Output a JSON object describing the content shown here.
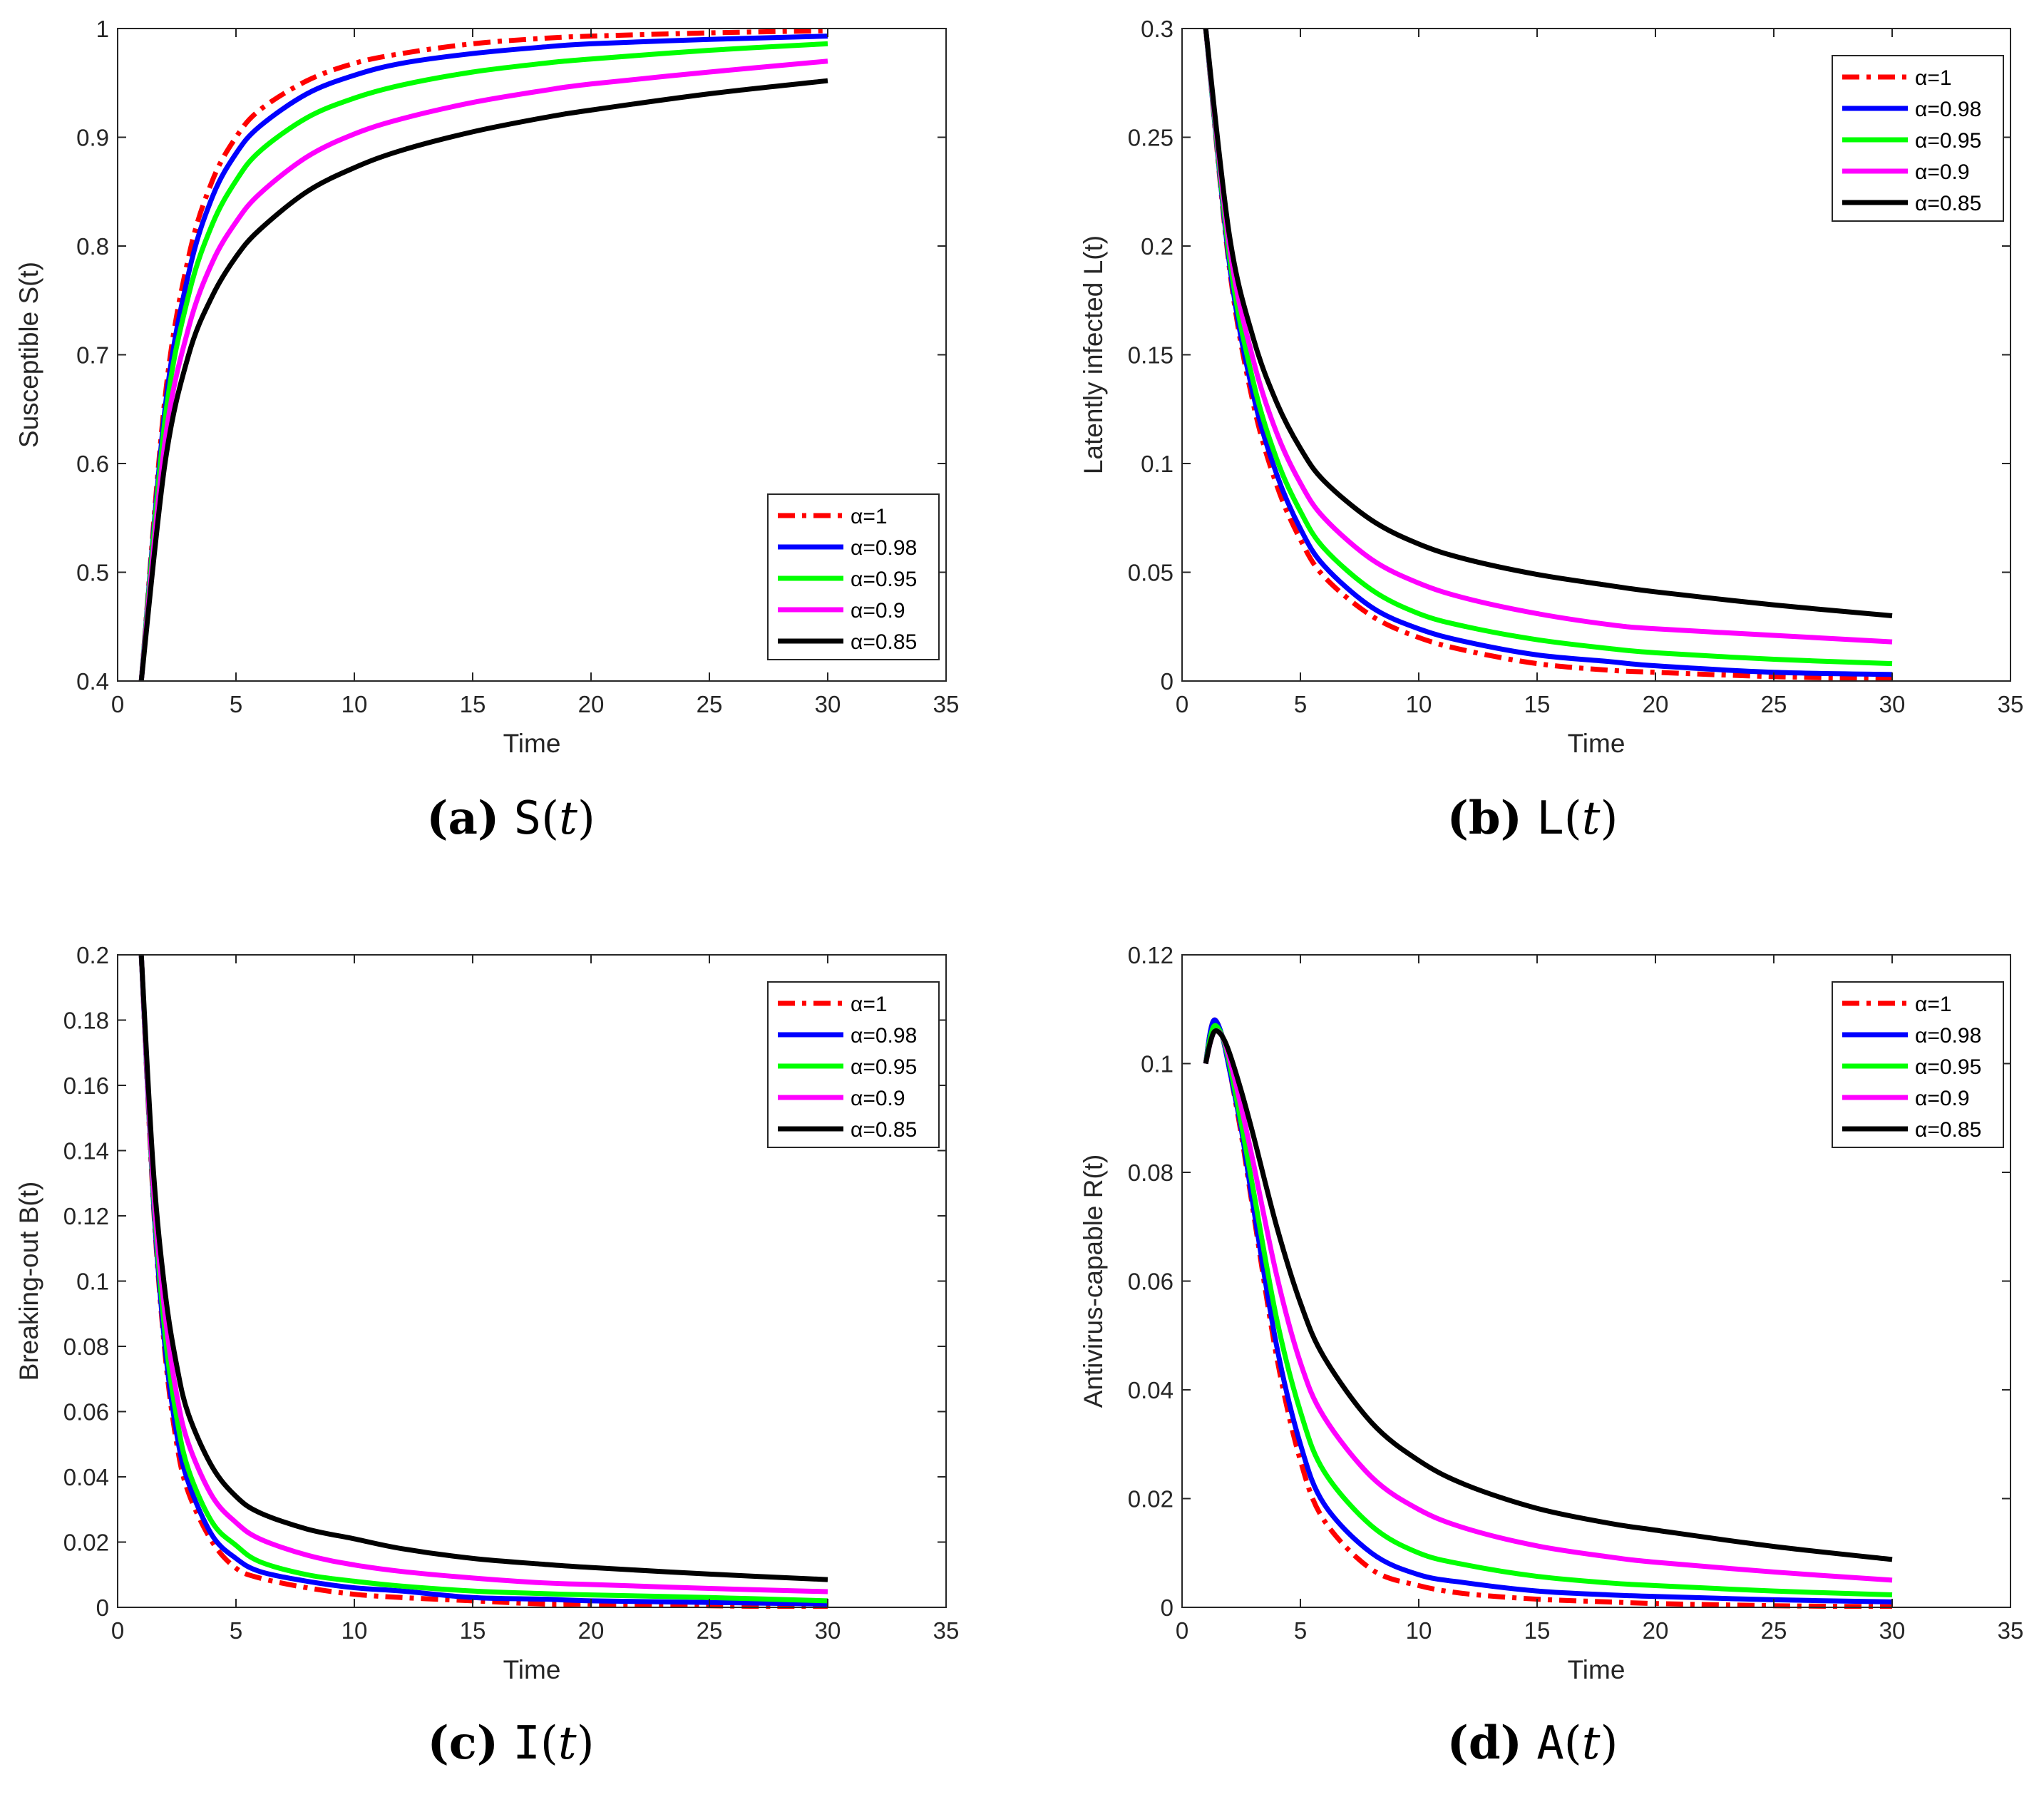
{
  "chart_data": [
    {
      "type": "line",
      "caption_label": "(a)",
      "caption_var": "S",
      "caption_paren_open": "(",
      "caption_arg": "t",
      "caption_paren_close": ")",
      "xlabel": "Time",
      "ylabel": "Susceptible S(t)",
      "xlim": [
        0,
        35
      ],
      "ylim": [
        0.4,
        1
      ],
      "xticks": [
        0,
        5,
        10,
        15,
        20,
        25,
        30,
        35
      ],
      "xtick_labels": [
        "0",
        "5",
        "10",
        "15",
        "20",
        "25",
        "30",
        "35"
      ],
      "yticks": [
        0.4,
        0.5,
        0.6,
        0.7,
        0.8,
        0.9,
        1
      ],
      "ytick_labels": [
        "0.4",
        "0.5",
        "0.6",
        "0.7",
        "0.8",
        "0.9",
        "1"
      ],
      "legend_position": "bottom-right",
      "series": [
        {
          "name": "α=1",
          "color": "#ff0000",
          "style": "dashdot",
          "x": [
            1,
            2,
            3,
            4,
            5,
            6,
            8,
            10,
            12,
            15,
            18,
            20,
            25,
            30
          ],
          "y": [
            0.4,
            0.66,
            0.79,
            0.86,
            0.9,
            0.925,
            0.952,
            0.968,
            0.977,
            0.986,
            0.991,
            0.993,
            0.996,
            0.998
          ]
        },
        {
          "name": "α=0.98",
          "color": "#0000ff",
          "style": "solid",
          "x": [
            1,
            2,
            3,
            4,
            5,
            6,
            8,
            10,
            12,
            15,
            18,
            20,
            25,
            30
          ],
          "y": [
            0.4,
            0.65,
            0.775,
            0.845,
            0.885,
            0.91,
            0.94,
            0.957,
            0.968,
            0.977,
            0.983,
            0.986,
            0.99,
            0.993
          ]
        },
        {
          "name": "α=0.95",
          "color": "#00ff00",
          "style": "solid",
          "x": [
            1,
            2,
            3,
            4,
            5,
            6,
            8,
            10,
            12,
            15,
            18,
            20,
            25,
            30
          ],
          "y": [
            0.4,
            0.64,
            0.755,
            0.82,
            0.86,
            0.887,
            0.918,
            0.936,
            0.948,
            0.96,
            0.968,
            0.972,
            0.98,
            0.986
          ]
        },
        {
          "name": "α=0.9",
          "color": "#ff00ff",
          "style": "solid",
          "x": [
            1,
            2,
            3,
            4,
            5,
            6,
            8,
            10,
            12,
            15,
            18,
            20,
            25,
            30
          ],
          "y": [
            0.4,
            0.62,
            0.725,
            0.785,
            0.822,
            0.848,
            0.882,
            0.903,
            0.917,
            0.932,
            0.943,
            0.949,
            0.96,
            0.97
          ]
        },
        {
          "name": "α=0.85",
          "color": "#000000",
          "style": "solid",
          "x": [
            1,
            2,
            3,
            4,
            5,
            6,
            8,
            10,
            12,
            15,
            18,
            20,
            25,
            30
          ],
          "y": [
            0.4,
            0.6,
            0.7,
            0.754,
            0.79,
            0.815,
            0.85,
            0.872,
            0.888,
            0.905,
            0.918,
            0.925,
            0.94,
            0.952
          ]
        }
      ]
    },
    {
      "type": "line",
      "caption_label": "(b)",
      "caption_var": "L",
      "caption_paren_open": "(",
      "caption_arg": "t",
      "caption_paren_close": ")",
      "xlabel": "Time",
      "ylabel": "Latently infected L(t)",
      "xlim": [
        0,
        35
      ],
      "ylim": [
        0,
        0.3
      ],
      "xticks": [
        0,
        5,
        10,
        15,
        20,
        25,
        30,
        35
      ],
      "xtick_labels": [
        "0",
        "5",
        "10",
        "15",
        "20",
        "25",
        "30",
        "35"
      ],
      "yticks": [
        0,
        0.05,
        0.1,
        0.15,
        0.2,
        0.25,
        0.3
      ],
      "ytick_labels": [
        "0",
        "0.05",
        "0.1",
        "0.15",
        "0.2",
        "0.25",
        "0.3"
      ],
      "legend_position": "top-right",
      "series": [
        {
          "name": "α=1",
          "color": "#ff0000",
          "style": "dashdot",
          "x": [
            1,
            2,
            3,
            4,
            5,
            6,
            8,
            10,
            12,
            15,
            18,
            20,
            25,
            30
          ],
          "y": [
            0.3,
            0.19,
            0.128,
            0.09,
            0.065,
            0.048,
            0.03,
            0.02,
            0.014,
            0.008,
            0.005,
            0.004,
            0.002,
            0.001
          ]
        },
        {
          "name": "α=0.98",
          "color": "#0000ff",
          "style": "solid",
          "x": [
            1,
            2,
            3,
            4,
            5,
            6,
            8,
            10,
            12,
            15,
            18,
            20,
            25,
            30
          ],
          "y": [
            0.3,
            0.192,
            0.132,
            0.095,
            0.07,
            0.053,
            0.034,
            0.024,
            0.018,
            0.012,
            0.009,
            0.007,
            0.004,
            0.003
          ]
        },
        {
          "name": "α=0.95",
          "color": "#00ff00",
          "style": "solid",
          "x": [
            1,
            2,
            3,
            4,
            5,
            6,
            8,
            10,
            12,
            15,
            18,
            20,
            25,
            30
          ],
          "y": [
            0.3,
            0.195,
            0.138,
            0.102,
            0.078,
            0.061,
            0.042,
            0.031,
            0.025,
            0.019,
            0.015,
            0.013,
            0.01,
            0.008
          ]
        },
        {
          "name": "α=0.9",
          "color": "#ff00ff",
          "style": "solid",
          "x": [
            1,
            2,
            3,
            4,
            5,
            6,
            8,
            10,
            12,
            15,
            18,
            20,
            25,
            30
          ],
          "y": [
            0.3,
            0.2,
            0.148,
            0.114,
            0.091,
            0.075,
            0.056,
            0.045,
            0.038,
            0.031,
            0.026,
            0.024,
            0.021,
            0.018
          ]
        },
        {
          "name": "α=0.85",
          "color": "#000000",
          "style": "solid",
          "x": [
            1,
            2,
            3,
            4,
            5,
            6,
            8,
            10,
            12,
            15,
            18,
            20,
            25,
            30
          ],
          "y": [
            0.3,
            0.205,
            0.158,
            0.128,
            0.107,
            0.092,
            0.074,
            0.063,
            0.056,
            0.049,
            0.044,
            0.041,
            0.035,
            0.03
          ]
        }
      ]
    },
    {
      "type": "line",
      "caption_label": "(c)",
      "caption_var": "I",
      "caption_paren_open": "(",
      "caption_arg": "t",
      "caption_paren_close": ")",
      "xlabel": "Time",
      "ylabel": "Breaking-out B(t)",
      "xlim": [
        0,
        35
      ],
      "ylim": [
        0,
        0.2
      ],
      "xticks": [
        0,
        5,
        10,
        15,
        20,
        25,
        30,
        35
      ],
      "xtick_labels": [
        "0",
        "5",
        "10",
        "15",
        "20",
        "25",
        "30",
        "35"
      ],
      "yticks": [
        0,
        0.02,
        0.04,
        0.06,
        0.08,
        0.1,
        0.12,
        0.14,
        0.16,
        0.18,
        0.2
      ],
      "ytick_labels": [
        "0",
        "0.02",
        "0.04",
        "0.06",
        "0.08",
        "0.1",
        "0.12",
        "0.14",
        "0.16",
        "0.18",
        "0.2"
      ],
      "legend_position": "top-right",
      "series": [
        {
          "name": "α=1",
          "color": "#ff0000",
          "style": "dashdot",
          "x": [
            1,
            1.5,
            2,
            2.5,
            3,
            4,
            5,
            6,
            8,
            10,
            12,
            15,
            18,
            20,
            25,
            30
          ],
          "y": [
            0.2,
            0.125,
            0.078,
            0.05,
            0.035,
            0.02,
            0.012,
            0.009,
            0.006,
            0.004,
            0.003,
            0.002,
            0.001,
            0.001,
            0.0005,
            0
          ]
        },
        {
          "name": "α=0.98",
          "color": "#0000ff",
          "style": "solid",
          "x": [
            1,
            1.5,
            2,
            2.5,
            3,
            4,
            5,
            6,
            8,
            10,
            12,
            15,
            18,
            20,
            25,
            30
          ],
          "y": [
            0.2,
            0.126,
            0.08,
            0.053,
            0.038,
            0.022,
            0.015,
            0.011,
            0.008,
            0.006,
            0.005,
            0.003,
            0.0025,
            0.002,
            0.0015,
            0.001
          ]
        },
        {
          "name": "α=0.95",
          "color": "#00ff00",
          "style": "solid",
          "x": [
            1,
            1.5,
            2,
            2.5,
            3,
            4,
            5,
            6,
            8,
            10,
            12,
            15,
            18,
            20,
            25,
            30
          ],
          "y": [
            0.2,
            0.128,
            0.084,
            0.058,
            0.042,
            0.026,
            0.019,
            0.014,
            0.01,
            0.008,
            0.0065,
            0.005,
            0.0042,
            0.0038,
            0.003,
            0.002
          ]
        },
        {
          "name": "α=0.9",
          "color": "#ff00ff",
          "style": "solid",
          "x": [
            1,
            1.5,
            2,
            2.5,
            3,
            4,
            5,
            6,
            8,
            10,
            12,
            15,
            18,
            20,
            25,
            30
          ],
          "y": [
            0.2,
            0.13,
            0.09,
            0.065,
            0.05,
            0.034,
            0.026,
            0.021,
            0.016,
            0.013,
            0.011,
            0.009,
            0.0075,
            0.007,
            0.0058,
            0.0048
          ]
        },
        {
          "name": "α=0.85",
          "color": "#000000",
          "style": "solid",
          "x": [
            1,
            1.5,
            2,
            2.5,
            3,
            4,
            5,
            6,
            8,
            10,
            12,
            15,
            18,
            20,
            25,
            30
          ],
          "y": [
            0.2,
            0.135,
            0.097,
            0.074,
            0.059,
            0.043,
            0.034,
            0.029,
            0.024,
            0.021,
            0.018,
            0.015,
            0.0132,
            0.0122,
            0.0102,
            0.0085
          ]
        }
      ]
    },
    {
      "type": "line",
      "caption_label": "(d)",
      "caption_var": "A",
      "caption_paren_open": "(",
      "caption_arg": "t",
      "caption_paren_close": ")",
      "xlabel": "Time",
      "ylabel": "Antivirus-capable R(t)",
      "xlim": [
        0,
        35
      ],
      "ylim": [
        0,
        0.12
      ],
      "xticks": [
        0,
        5,
        10,
        15,
        20,
        25,
        30,
        35
      ],
      "xtick_labels": [
        "0",
        "5",
        "10",
        "15",
        "20",
        "25",
        "30",
        "35"
      ],
      "yticks": [
        0,
        0.02,
        0.04,
        0.06,
        0.08,
        0.1,
        0.12
      ],
      "ytick_labels": [
        "0",
        "0.02",
        "0.04",
        "0.06",
        "0.08",
        "0.1",
        "0.12"
      ],
      "legend_position": "top-right",
      "series": [
        {
          "name": "α=1",
          "color": "#ff0000",
          "style": "dashdot",
          "x": [
            1,
            1.2,
            1.4,
            1.7,
            2,
            2.5,
            3,
            4,
            5,
            6,
            8,
            10,
            12,
            15,
            18,
            20,
            25,
            30
          ],
          "y": [
            0.1,
            0.106,
            0.108,
            0.105,
            0.099,
            0.087,
            0.073,
            0.046,
            0.027,
            0.016,
            0.007,
            0.004,
            0.0025,
            0.0015,
            0.001,
            0.0007,
            0.0003,
            0.0001
          ]
        },
        {
          "name": "α=0.98",
          "color": "#0000ff",
          "style": "solid",
          "x": [
            1,
            1.2,
            1.4,
            1.7,
            2,
            2.5,
            3,
            4,
            5,
            6,
            8,
            10,
            12,
            15,
            18,
            20,
            25,
            30
          ],
          "y": [
            0.1,
            0.106,
            0.108,
            0.105,
            0.099,
            0.088,
            0.074,
            0.048,
            0.03,
            0.019,
            0.01,
            0.006,
            0.0045,
            0.003,
            0.0023,
            0.002,
            0.0014,
            0.001
          ]
        },
        {
          "name": "α=0.95",
          "color": "#00ff00",
          "style": "solid",
          "x": [
            1,
            1.2,
            1.4,
            1.7,
            2,
            2.5,
            3,
            4,
            5,
            6,
            8,
            10,
            12,
            15,
            18,
            20,
            25,
            30
          ],
          "y": [
            0.1,
            0.105,
            0.107,
            0.105,
            0.1,
            0.089,
            0.077,
            0.053,
            0.036,
            0.025,
            0.015,
            0.01,
            0.0078,
            0.0057,
            0.0045,
            0.004,
            0.003,
            0.0023
          ]
        },
        {
          "name": "α=0.9",
          "color": "#ff00ff",
          "style": "solid",
          "x": [
            1,
            1.2,
            1.4,
            1.7,
            2,
            2.5,
            3,
            4,
            5,
            6,
            8,
            10,
            12,
            15,
            18,
            20,
            25,
            30
          ],
          "y": [
            0.1,
            0.104,
            0.106,
            0.105,
            0.101,
            0.092,
            0.082,
            0.061,
            0.045,
            0.035,
            0.024,
            0.018,
            0.0145,
            0.0113,
            0.0093,
            0.0083,
            0.0065,
            0.005
          ]
        },
        {
          "name": "α=0.85",
          "color": "#000000",
          "style": "solid",
          "x": [
            1,
            1.2,
            1.4,
            1.7,
            2,
            2.5,
            3,
            4,
            5,
            6,
            8,
            10,
            12,
            15,
            18,
            20,
            25,
            30
          ],
          "y": [
            0.1,
            0.104,
            0.106,
            0.105,
            0.102,
            0.095,
            0.087,
            0.07,
            0.056,
            0.046,
            0.034,
            0.027,
            0.0225,
            0.0182,
            0.0155,
            0.0142,
            0.0112,
            0.0088
          ]
        }
      ]
    }
  ]
}
